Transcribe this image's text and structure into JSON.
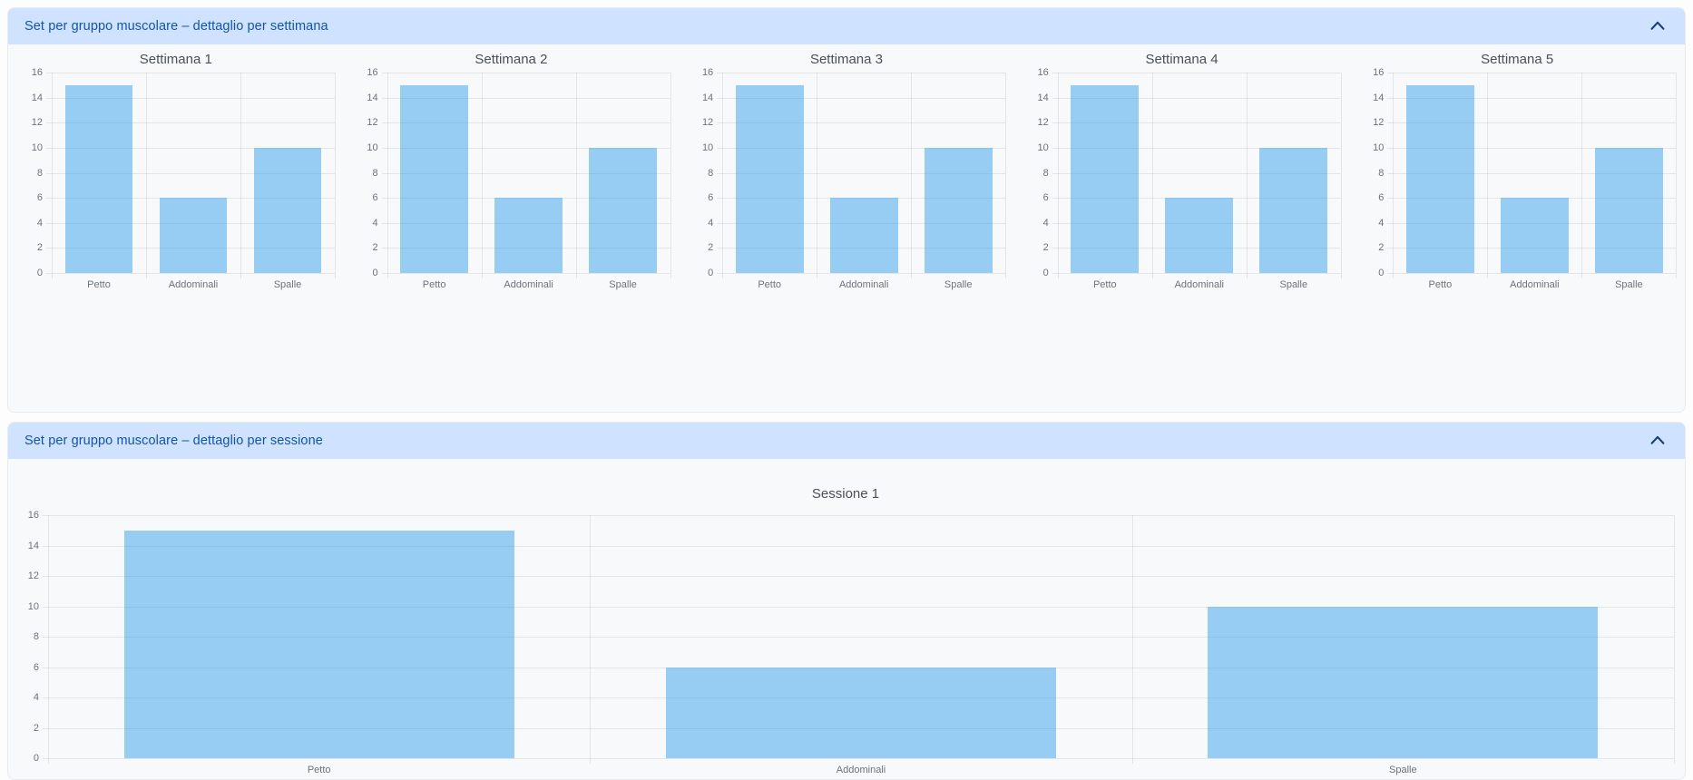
{
  "panels": [
    {
      "title": "Set per gruppo muscolare – dettaglio per settimana",
      "collapse_icon": "chevron-up",
      "state": "expanded"
    },
    {
      "title": "Set per gruppo muscolare – dettaglio per sessione",
      "collapse_icon": "chevron-up",
      "state": "expanded"
    }
  ],
  "chart_data": [
    {
      "group": "per-settimana",
      "type": "bar",
      "title": "Settimana 1",
      "categories": [
        "Petto",
        "Addominali",
        "Spalle"
      ],
      "values": [
        15,
        6,
        10
      ],
      "ylim": [
        0,
        16
      ],
      "ytick_step": 2,
      "grid": true,
      "legend": "none"
    },
    {
      "group": "per-settimana",
      "type": "bar",
      "title": "Settimana 2",
      "categories": [
        "Petto",
        "Addominali",
        "Spalle"
      ],
      "values": [
        15,
        6,
        10
      ],
      "ylim": [
        0,
        16
      ],
      "ytick_step": 2,
      "grid": true,
      "legend": "none"
    },
    {
      "group": "per-settimana",
      "type": "bar",
      "title": "Settimana 3",
      "categories": [
        "Petto",
        "Addominali",
        "Spalle"
      ],
      "values": [
        15,
        6,
        10
      ],
      "ylim": [
        0,
        16
      ],
      "ytick_step": 2,
      "grid": true,
      "legend": "none"
    },
    {
      "group": "per-settimana",
      "type": "bar",
      "title": "Settimana 4",
      "categories": [
        "Petto",
        "Addominali",
        "Spalle"
      ],
      "values": [
        15,
        6,
        10
      ],
      "ylim": [
        0,
        16
      ],
      "ytick_step": 2,
      "grid": true,
      "legend": "none"
    },
    {
      "group": "per-settimana",
      "type": "bar",
      "title": "Settimana 5",
      "categories": [
        "Petto",
        "Addominali",
        "Spalle"
      ],
      "values": [
        15,
        6,
        10
      ],
      "ylim": [
        0,
        16
      ],
      "ytick_step": 2,
      "grid": true,
      "legend": "none"
    },
    {
      "group": "per-sessione",
      "type": "bar",
      "title": "Sessione 1",
      "categories": [
        "Petto",
        "Addominali",
        "Spalle"
      ],
      "values": [
        15,
        6,
        10
      ],
      "ylim": [
        0,
        16
      ],
      "ytick_step": 2,
      "grid": true,
      "legend": "none"
    }
  ],
  "colors": {
    "bar_fill": "rgba(54, 162, 235, 0.5)",
    "panel_header_bg": "#cfe2ff",
    "panel_header_text": "#1355a5",
    "chevron": "#1b3e77",
    "panel_bg": "#f8f9fa",
    "grid_line": "rgba(0, 0, 0, 0.08)",
    "tick_label": "#6a737d",
    "chart_title": "#495057"
  }
}
